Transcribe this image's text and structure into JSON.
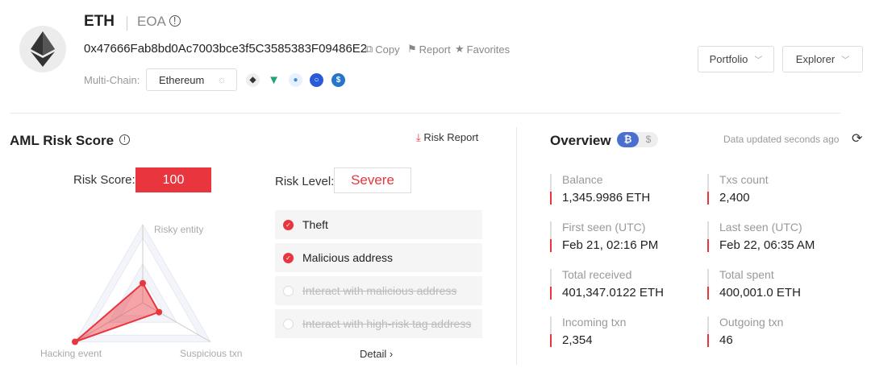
{
  "header": {
    "symbol": "ETH",
    "type": "EOA",
    "address": "0x47666Fab8bd0Ac7003bce3f5C3585383F09486E2",
    "copy": "Copy",
    "report": "Report",
    "favorites": "Favorites",
    "multichain_label": "Multi-Chain:",
    "chain": "Ethereum",
    "chain_icons": [
      "eth-icon",
      "tether-icon",
      "drop-icon",
      "chainlink-icon",
      "usdc-icon"
    ],
    "portfolio": "Portfolio",
    "explorer": "Explorer"
  },
  "aml": {
    "title": "AML Risk Score",
    "risk_report": "Risk Report",
    "score_label": "Risk Score:",
    "score": "100",
    "level_label": "Risk Level:",
    "level": "Severe",
    "tags": [
      {
        "label": "Theft",
        "active": true
      },
      {
        "label": "Malicious address",
        "active": true
      },
      {
        "label": "Interact with malicious address",
        "active": false
      },
      {
        "label": "Interact with high-risk tag address",
        "active": false
      }
    ],
    "detail": "Detail",
    "radar": {
      "axes": [
        "Risky entity",
        "Suspicious txn",
        "Hacking event"
      ],
      "values": [
        0.25,
        0.24,
        1.0
      ],
      "color": "#e8353e"
    }
  },
  "overview": {
    "title": "Overview",
    "currency_btc": "₿",
    "currency_usd": "$",
    "updated": "Data updated seconds ago",
    "metrics": [
      {
        "label": "Balance",
        "value": "1,345.9986 ETH"
      },
      {
        "label": "Txs count",
        "value": "2,400"
      },
      {
        "label": "First seen (UTC)",
        "value": "Feb 21, 02:16 PM"
      },
      {
        "label": "Last seen (UTC)",
        "value": "Feb 22, 06:35 AM"
      },
      {
        "label": "Total received",
        "value": "401,347.0122 ETH"
      },
      {
        "label": "Total spent",
        "value": "400,001.0 ETH"
      },
      {
        "label": "Incoming txn",
        "value": "2,354"
      },
      {
        "label": "Outgoing txn",
        "value": "46"
      }
    ]
  },
  "colors": {
    "accent": "#e8353e",
    "toggle": "#4a6fd1"
  }
}
